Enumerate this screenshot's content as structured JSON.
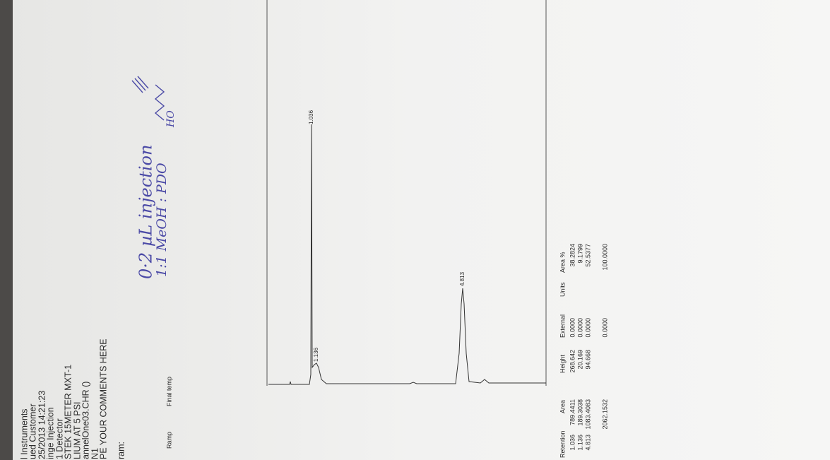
{
  "header_lines": [
    "l Instruments",
    "ued Customer",
    "25/2013 14:21:23",
    "inge Injection",
    "1 Detector",
    "STEK 15METER MXT-1",
    "LIUM AT 5 PSI",
    "annelOne03.CHR ()",
    "N1",
    "PE YOUR COMMENTS HERE"
  ],
  "program": {
    "label": "ram:",
    "columns": [
      "Ramp",
      "Final temp"
    ]
  },
  "handwritten": {
    "lines": [
      "0·2 µL injection",
      "1:1 MeOH : PDO"
    ],
    "structure_label": "HO"
  },
  "peak_labels": [
    "1.036",
    "1.136",
    "4.813"
  ],
  "table": {
    "headers": [
      "Retention",
      "Area",
      "Height",
      "External",
      "Units",
      "Area %"
    ],
    "rows": [
      [
        "1.036",
        "789.4411",
        "268.642",
        "0.0000",
        "38.2824"
      ],
      [
        "1.136",
        "189.3038",
        "20.169",
        "0.0000",
        "9.1799"
      ],
      [
        "4.813",
        "1083.4083",
        "94.668",
        "0.0000",
        "52.5377"
      ]
    ],
    "total": {
      "area": "2062.1532",
      "external": "0.0000",
      "area_pct": "100.0000"
    }
  }
}
